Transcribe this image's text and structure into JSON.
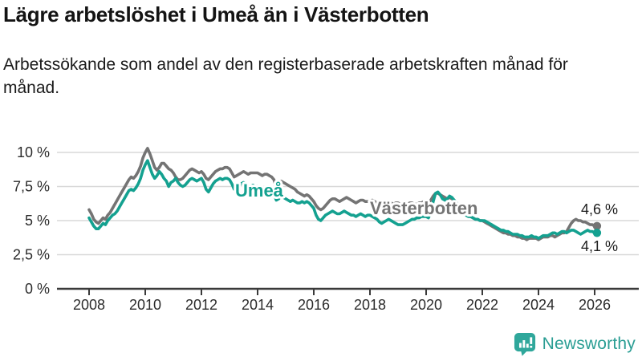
{
  "header": {
    "title": "Lägre arbetslöshet i Umeå än i Västerbotten",
    "subtitle": "Arbetssökande som andel av den registerbaserade arbetskraften månad för månad."
  },
  "chart_data": {
    "type": "line",
    "title": "Lägre arbetslöshet i Umeå än i Västerbotten",
    "x_unit": "month",
    "x_range_start": "2008-01",
    "x_range_end": "2026-02",
    "xlim": [
      2008,
      2026.2
    ],
    "ylim": [
      0,
      11
    ],
    "grid": "horizontal",
    "legend_position": "inline-labels",
    "x_ticks": [
      2008,
      2010,
      2012,
      2014,
      2016,
      2018,
      2020,
      2022,
      2024,
      2026
    ],
    "y_ticks": [
      {
        "value": 0,
        "label": "0 %"
      },
      {
        "value": 2.5,
        "label": "2,5 %"
      },
      {
        "value": 5,
        "label": "5 %"
      },
      {
        "value": 7.5,
        "label": "7,5 %"
      },
      {
        "value": 10,
        "label": "10 %"
      }
    ],
    "series": [
      {
        "id": "vasterbotten",
        "name": "Västerbotten",
        "color": "#747474",
        "end_label": "4,6 %",
        "values": [
          5.8,
          5.5,
          5.1,
          4.9,
          4.8,
          5.0,
          5.2,
          5.1,
          5.4,
          5.6,
          5.9,
          6.2,
          6.5,
          6.8,
          7.1,
          7.4,
          7.7,
          8.0,
          8.2,
          8.1,
          8.3,
          8.6,
          9.0,
          9.6,
          10.0,
          10.3,
          9.9,
          9.4,
          8.9,
          8.7,
          8.9,
          9.2,
          9.2,
          9.0,
          8.8,
          8.7,
          8.5,
          8.2,
          8.0,
          8.0,
          8.1,
          8.3,
          8.5,
          8.7,
          8.8,
          8.7,
          8.6,
          8.5,
          8.6,
          8.4,
          8.1,
          8.0,
          8.2,
          8.4,
          8.6,
          8.7,
          8.8,
          8.8,
          8.9,
          8.9,
          8.8,
          8.5,
          8.2,
          8.3,
          8.4,
          8.5,
          8.6,
          8.5,
          8.4,
          8.5,
          8.5,
          8.5,
          8.5,
          8.4,
          8.3,
          8.4,
          8.4,
          8.3,
          8.2,
          8.0,
          7.4,
          7.6,
          7.9,
          7.8,
          7.7,
          7.6,
          7.5,
          7.4,
          7.3,
          7.1,
          7.0,
          6.9,
          6.8,
          6.9,
          6.8,
          6.6,
          6.4,
          6.1,
          5.9,
          5.8,
          5.9,
          6.1,
          6.3,
          6.5,
          6.6,
          6.6,
          6.5,
          6.4,
          6.5,
          6.6,
          6.7,
          6.6,
          6.5,
          6.4,
          6.3,
          6.4,
          6.5,
          6.5,
          6.4,
          6.4,
          6.4,
          6.5,
          6.4,
          6.3,
          6.2,
          6.3,
          6.4,
          6.4,
          6.3,
          6.3,
          6.2,
          6.3,
          6.3,
          6.2,
          6.1,
          6.2,
          6.2,
          6.3,
          6.3,
          6.2,
          6.2,
          6.3,
          6.3,
          6.4,
          6.4,
          6.3,
          6.5,
          6.8,
          7.0,
          7.0,
          6.9,
          6.8,
          6.7,
          6.6,
          6.7,
          6.6,
          6.5,
          6.3,
          6.1,
          5.9,
          5.7,
          5.5,
          5.4,
          5.3,
          5.2,
          5.1,
          5.1,
          5.0,
          5.0,
          4.9,
          4.8,
          4.7,
          4.6,
          4.5,
          4.4,
          4.3,
          4.2,
          4.1,
          4.1,
          4.0,
          4.0,
          3.9,
          3.9,
          3.8,
          3.8,
          3.7,
          3.7,
          3.6,
          3.7,
          3.7,
          3.7,
          3.7,
          3.6,
          3.7,
          3.8,
          3.8,
          3.8,
          3.9,
          3.9,
          3.8,
          3.9,
          4.0,
          4.1,
          4.1,
          4.2,
          4.5,
          4.8,
          5.0,
          5.1,
          5.0,
          5.0,
          4.9,
          4.9,
          4.8,
          4.7,
          4.7,
          4.6,
          4.6
        ]
      },
      {
        "id": "umea",
        "name": "Umeå",
        "color": "#14a190",
        "end_label": "4,1 %",
        "values": [
          5.2,
          4.9,
          4.6,
          4.4,
          4.4,
          4.6,
          4.8,
          4.7,
          5.0,
          5.2,
          5.4,
          5.5,
          5.7,
          6.0,
          6.3,
          6.6,
          6.9,
          7.2,
          7.3,
          7.2,
          7.4,
          7.7,
          8.1,
          8.7,
          9.1,
          9.4,
          8.9,
          8.4,
          8.1,
          8.3,
          8.6,
          8.4,
          8.1,
          7.9,
          7.5,
          7.8,
          7.9,
          8.1,
          7.8,
          7.6,
          7.5,
          7.6,
          7.8,
          8.0,
          8.1,
          8.0,
          7.9,
          8.0,
          8.1,
          7.8,
          7.3,
          7.1,
          7.4,
          7.7,
          7.9,
          8.0,
          8.1,
          8.0,
          8.1,
          8.1,
          8.0,
          7.7,
          7.3,
          7.4,
          7.5,
          7.7,
          7.8,
          7.7,
          7.5,
          7.5,
          7.6,
          7.5,
          7.5,
          7.4,
          7.3,
          7.3,
          7.2,
          7.1,
          7.0,
          6.9,
          6.5,
          6.6,
          6.8,
          6.7,
          6.6,
          6.5,
          6.4,
          6.5,
          6.4,
          6.3,
          6.3,
          6.4,
          6.3,
          6.4,
          6.3,
          6.1,
          5.9,
          5.4,
          5.1,
          5.0,
          5.2,
          5.4,
          5.5,
          5.6,
          5.7,
          5.6,
          5.5,
          5.5,
          5.6,
          5.7,
          5.6,
          5.5,
          5.4,
          5.4,
          5.3,
          5.4,
          5.5,
          5.4,
          5.3,
          5.4,
          5.4,
          5.3,
          5.2,
          5.1,
          4.9,
          4.8,
          4.9,
          5.0,
          5.1,
          5.0,
          4.9,
          4.8,
          4.7,
          4.7,
          4.7,
          4.8,
          4.9,
          5.0,
          5.1,
          5.1,
          5.2,
          5.2,
          5.3,
          5.3,
          5.3,
          5.2,
          5.6,
          6.4,
          7.0,
          7.1,
          6.9,
          6.6,
          6.5,
          6.6,
          6.8,
          6.7,
          6.5,
          6.3,
          6.0,
          5.8,
          5.6,
          5.4,
          5.3,
          5.3,
          5.2,
          5.1,
          5.1,
          5.0,
          5.0,
          5.0,
          4.9,
          4.8,
          4.7,
          4.6,
          4.5,
          4.4,
          4.3,
          4.3,
          4.2,
          4.2,
          4.1,
          4.0,
          4.0,
          4.0,
          3.9,
          3.9,
          3.8,
          3.8,
          3.8,
          3.9,
          3.8,
          3.8,
          3.7,
          3.8,
          3.9,
          3.9,
          3.9,
          4.0,
          4.1,
          4.1,
          4.0,
          4.1,
          4.2,
          4.2,
          4.1,
          4.2,
          4.3,
          4.3,
          4.2,
          4.1,
          4.0,
          4.1,
          4.2,
          4.3,
          4.2,
          4.2,
          4.1,
          4.1
        ]
      }
    ]
  },
  "colors": {
    "umea_teal": "#14a190",
    "vasterbotten_gray": "#747474",
    "gridline": "#d8d8d8",
    "axis": "#3a3a3a",
    "tick_text": "#2b2b2b",
    "annotation_text": "#1c1c1c",
    "brand_teal": "#2b9e94"
  },
  "footer": {
    "brand": "Newsworthy"
  }
}
